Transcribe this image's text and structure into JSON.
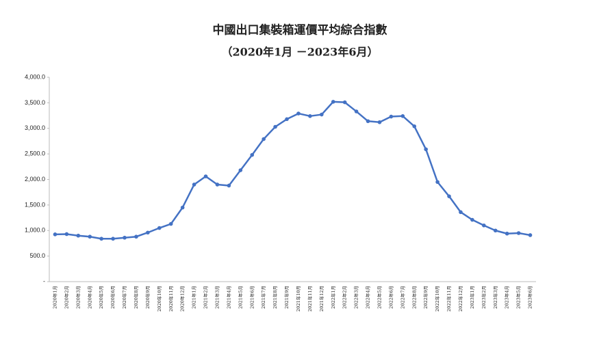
{
  "chart_data": {
    "type": "line",
    "title": "中國出口集裝箱運價平均綜合指數",
    "subtitle": "（2020年1月 －2023年6月）",
    "categories": [
      "2020年1月",
      "2020年2月",
      "2020年3月",
      "2020年4月",
      "2020年5月",
      "2020年6月",
      "2020年7月",
      "2020年8月",
      "2020年9月",
      "2020年10月",
      "2020年11月",
      "2020年12月",
      "2021年1月",
      "2021年2月",
      "2021年3月",
      "2021年4月",
      "2021年5月",
      "2021年6月",
      "2021年7月",
      "2021年8月",
      "2021年9月",
      "2021年10月",
      "2021年11月",
      "2021年12月",
      "2022年1月",
      "2022年2月",
      "2022年3月",
      "2022年4月",
      "2022年5月",
      "2022年6月",
      "2022年7月",
      "2022年8月",
      "2022年9月",
      "2022年10月",
      "2022年11月",
      "2022年12月",
      "2023年1月",
      "2023年2月",
      "2023年3月",
      "2023年4月",
      "2023年5月",
      "2023年6月"
    ],
    "values": [
      925,
      930,
      900,
      880,
      840,
      840,
      860,
      880,
      960,
      1050,
      1130,
      1450,
      1900,
      2060,
      1900,
      1880,
      2180,
      2480,
      2790,
      3030,
      3180,
      3290,
      3240,
      3270,
      3520,
      3510,
      3330,
      3140,
      3120,
      3230,
      3240,
      3040,
      2590,
      1950,
      1670,
      1360,
      1210,
      1100,
      1000,
      940,
      950,
      910
    ],
    "color": "#4472c4",
    "ylim": [
      0,
      4000
    ],
    "yticks": [
      {
        "value": 0,
        "label": "-"
      },
      {
        "value": 500,
        "label": "500.0"
      },
      {
        "value": 1000,
        "label": "1,000.0"
      },
      {
        "value": 1500,
        "label": "1,500.0"
      },
      {
        "value": 2000,
        "label": "2,000.0"
      },
      {
        "value": 2500,
        "label": "2,500.0"
      },
      {
        "value": 3000,
        "label": "3,000.0"
      },
      {
        "value": 3500,
        "label": "3,500.0"
      },
      {
        "value": 4000,
        "label": "4,000.0"
      }
    ],
    "grid": false
  }
}
